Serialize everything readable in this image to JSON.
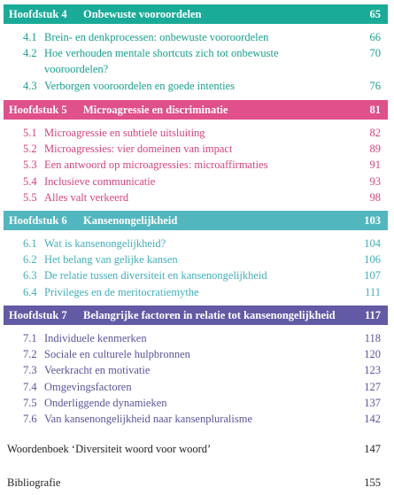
{
  "chapters": [
    {
      "label": "Hoofdstuk 4",
      "title": "Onbewuste vooroordelen",
      "page": "65",
      "entries": [
        {
          "number": "4.1",
          "title": "Brein- en denkprocessen: onbewuste vooroordelen",
          "page": "66"
        },
        {
          "number": "4.2",
          "title": "Hoe verhouden mentale shortcuts zich tot onbewuste vooroordelen?",
          "page": "70"
        },
        {
          "number": "4.3",
          "title": "Verborgen vooroordelen en goede intenties",
          "page": "76"
        }
      ]
    },
    {
      "label": "Hoofdstuk 5",
      "title": "Microagressie en discriminatie",
      "page": "81",
      "entries": [
        {
          "number": "5.1",
          "title": "Microagressie en subtiele uitsluiting",
          "page": "82"
        },
        {
          "number": "5.2",
          "title": "Microagressies: vier domeinen van impact",
          "page": "89"
        },
        {
          "number": "5.3",
          "title": "Een antwoord op microagressies: microaffirmaties",
          "page": "91"
        },
        {
          "number": "5.4",
          "title": "Inclusieve communicatie",
          "page": "93"
        },
        {
          "number": "5.5",
          "title": "Alles valt verkeerd",
          "page": "98"
        }
      ]
    },
    {
      "label": "Hoofdstuk 6",
      "title": "Kansenongelijkheid",
      "page": "103",
      "entries": [
        {
          "number": "6.1",
          "title": "Wat is kansenongelijkheid?",
          "page": "104"
        },
        {
          "number": "6.2",
          "title": "Het belang van gelijke kansen",
          "page": "106"
        },
        {
          "number": "6.3",
          "title": "De relatie tussen diversiteit en kansenongelijkheid",
          "page": "107"
        },
        {
          "number": "6.4",
          "title": "Privileges en de meritocratiemythe",
          "page": "111"
        }
      ]
    },
    {
      "label": "Hoofdstuk 7",
      "title": "Belangrijke factoren in relatie tot kansenongelijkheid",
      "page": "117",
      "entries": [
        {
          "number": "7.1",
          "title": "Individuele kenmerken",
          "page": "118"
        },
        {
          "number": "7.2",
          "title": "Sociale en culturele hulpbronnen",
          "page": "120"
        },
        {
          "number": "7.3",
          "title": "Veerkracht en motivatie",
          "page": "123"
        },
        {
          "number": "7.4",
          "title": "Omgevingsfactoren",
          "page": "127"
        },
        {
          "number": "7.5",
          "title": "Onderliggende dynamieken",
          "page": "137"
        },
        {
          "number": "7.6",
          "title": "Van kansenongelijkheid naar kansenpluralisme",
          "page": "142"
        }
      ]
    }
  ],
  "back_matter": [
    {
      "title": "Woordenboek ‘Diversiteit woord voor woord’",
      "page": "147"
    },
    {
      "title": "Bibliografie",
      "page": "155"
    }
  ]
}
